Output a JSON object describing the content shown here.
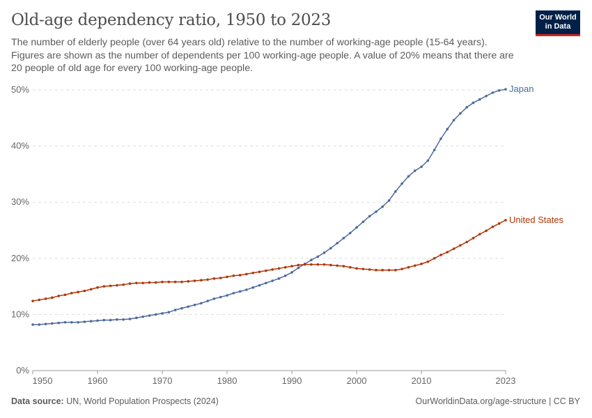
{
  "header": {
    "title": "Old-age dependency ratio, 1950 to 2023",
    "subtitle": "The number of elderly people (over 64 years old) relative to the number of working-age people (15-64 years). Figures are shown as the number of dependents per 100 working-age people. A value of 20% means that there are 20 people of old age for every 100 working-age people.",
    "logo": "Our World in Data"
  },
  "footer": {
    "source_label": "Data source:",
    "source": "UN, World Population Prospects (2024)",
    "link": "OurWorldinData.org/age-structure | CC BY"
  },
  "chart_data": {
    "type": "line",
    "title": "Old-age dependency ratio, 1950 to 2023",
    "xlabel": "",
    "ylabel": "",
    "xlim": [
      1950,
      2023
    ],
    "ylim": [
      0,
      50
    ],
    "y_unit": "%",
    "grid": "horizontal dashed",
    "legend": "inline labels at line ends",
    "x_ticks": [
      1950,
      1960,
      1970,
      1980,
      1990,
      2000,
      2010,
      2023
    ],
    "y_ticks": [
      "0%",
      "10%",
      "20%",
      "30%",
      "40%",
      "50%"
    ],
    "x_start": 1950,
    "series": [
      {
        "name": "Japan",
        "color": "#4c6a9c",
        "values": [
          8.2,
          8.2,
          8.3,
          8.4,
          8.5,
          8.6,
          8.6,
          8.6,
          8.7,
          8.8,
          8.9,
          9.0,
          9.0,
          9.1,
          9.1,
          9.2,
          9.4,
          9.6,
          9.8,
          10.0,
          10.2,
          10.4,
          10.8,
          11.1,
          11.4,
          11.7,
          12.0,
          12.4,
          12.8,
          13.1,
          13.4,
          13.8,
          14.1,
          14.4,
          14.8,
          15.2,
          15.6,
          16.0,
          16.4,
          16.9,
          17.5,
          18.3,
          19.0,
          19.7,
          20.3,
          21.0,
          21.8,
          22.7,
          23.6,
          24.5,
          25.5,
          26.5,
          27.5,
          28.3,
          29.2,
          30.3,
          31.9,
          33.3,
          34.6,
          35.6,
          36.3,
          37.4,
          39.3,
          41.3,
          43.0,
          44.6,
          45.8,
          46.9,
          47.7,
          48.3,
          48.9,
          49.5,
          49.9,
          50.1
        ]
      },
      {
        "name": "United States",
        "color": "#b13507",
        "values": [
          12.4,
          12.6,
          12.8,
          13.0,
          13.3,
          13.5,
          13.8,
          14.0,
          14.2,
          14.5,
          14.8,
          15.0,
          15.1,
          15.2,
          15.3,
          15.5,
          15.6,
          15.6,
          15.7,
          15.7,
          15.8,
          15.8,
          15.8,
          15.8,
          15.9,
          16.0,
          16.1,
          16.2,
          16.4,
          16.5,
          16.7,
          16.9,
          17.0,
          17.2,
          17.4,
          17.6,
          17.8,
          18.0,
          18.2,
          18.4,
          18.6,
          18.8,
          18.9,
          18.9,
          18.9,
          18.9,
          18.8,
          18.7,
          18.6,
          18.4,
          18.2,
          18.1,
          18.0,
          17.9,
          17.9,
          17.9,
          17.9,
          18.1,
          18.4,
          18.7,
          19.0,
          19.4,
          20.0,
          20.6,
          21.1,
          21.7,
          22.3,
          22.9,
          23.6,
          24.3,
          24.9,
          25.6,
          26.2,
          26.8
        ]
      }
    ]
  }
}
